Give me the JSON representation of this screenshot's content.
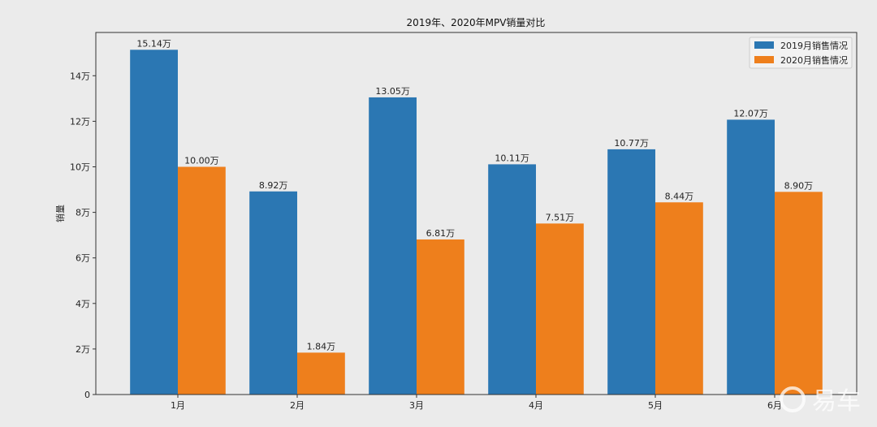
{
  "chart_data": {
    "type": "bar",
    "title": "2019年、2020年MPV销量对比",
    "xlabel": "",
    "ylabel": "销量",
    "categories": [
      "1月",
      "2月",
      "3月",
      "4月",
      "5月",
      "6月"
    ],
    "series": [
      {
        "name": "2019月销售情况",
        "color": "#2b77b3",
        "values": [
          15.14,
          8.92,
          13.05,
          10.11,
          10.77,
          12.07
        ],
        "labels": [
          "15.14万",
          "8.92万",
          "13.05万",
          "10.11万",
          "10.77万",
          "12.07万"
        ]
      },
      {
        "name": "2020月销售情况",
        "color": "#ee7f1c",
        "values": [
          10.0,
          1.84,
          6.81,
          7.51,
          8.44,
          8.9
        ],
        "labels": [
          "10.00万",
          "1.84万",
          "6.81万",
          "7.51万",
          "8.44万",
          "8.90万"
        ]
      }
    ],
    "yticks": [
      0,
      2,
      4,
      6,
      8,
      10,
      12,
      14
    ],
    "ytick_labels": [
      "0",
      "2万",
      "4万",
      "6万",
      "8万",
      "10万",
      "12万",
      "14万"
    ],
    "ylim": [
      0,
      15.9
    ],
    "grid": false,
    "legend": "top-right",
    "unit": "万"
  },
  "watermark": "易车"
}
